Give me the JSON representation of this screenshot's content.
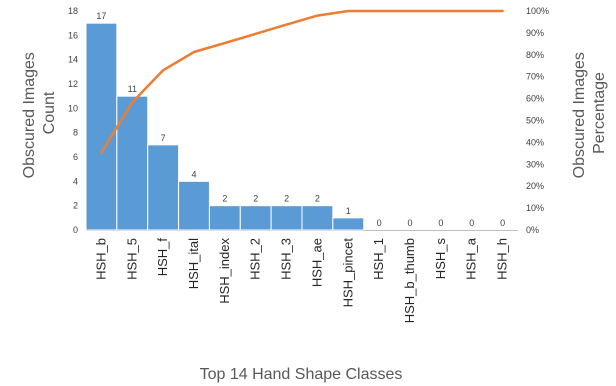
{
  "chart_data": {
    "type": "bar",
    "title": "",
    "xlabel": "Top 14 Hand Shape Classes",
    "ylabel": [
      "Obscured Images",
      "Count"
    ],
    "y2label": [
      "Obscured Images",
      "Percentage"
    ],
    "categories": [
      "HSH_b",
      "HSH_5",
      "HSH_f",
      "HSH_ital",
      "HSH_index",
      "HSH_2",
      "HSH_3",
      "HSH_ae",
      "HSH_pincet",
      "HSH_1",
      "HSH_b_thumb",
      "HSH_s",
      "HSH_a",
      "HSH_h"
    ],
    "series": [
      {
        "type": "bar",
        "axis": "left",
        "values": [
          17,
          11,
          7,
          4,
          2,
          2,
          2,
          2,
          1,
          0,
          0,
          0,
          0,
          0
        ]
      },
      {
        "type": "line",
        "axis": "right",
        "values": [
          35.4,
          58.3,
          72.9,
          81.3,
          85.4,
          89.6,
          93.8,
          97.9,
          100,
          100,
          100,
          100,
          100,
          100
        ]
      }
    ],
    "ylim": [
      0,
      18
    ],
    "yticks": [
      "0",
      "2",
      "4",
      "6",
      "8",
      "10",
      "12",
      "14",
      "16",
      "18"
    ],
    "y2lim": [
      0,
      100
    ],
    "y2ticks": [
      "0%",
      "10%",
      "20%",
      "30%",
      "40%",
      "50%",
      "60%",
      "70%",
      "80%",
      "90%",
      "100%"
    ],
    "grid": false,
    "legend": "none",
    "colors": {
      "bar": "#5b9bd5",
      "bar_edge": "#ffffff",
      "line": "#ed7d31",
      "axis": "#bfbfbf"
    }
  }
}
